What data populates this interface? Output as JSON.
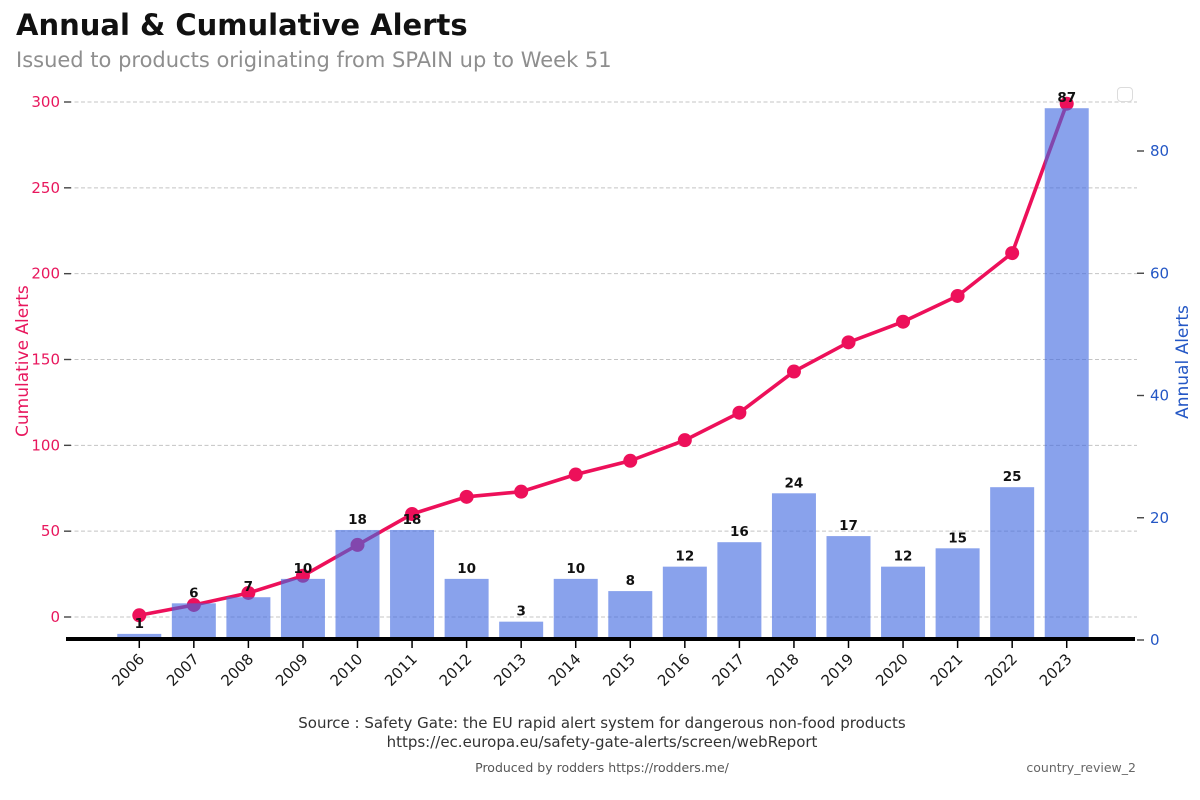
{
  "header": {
    "title": "Annual & Cumulative Alerts",
    "subtitle": "Issued to products originating from SPAIN up to Week 51"
  },
  "chart_data": {
    "type": "bar",
    "title": "Annual & Cumulative Alerts",
    "subtitle": "Issued to products originating from SPAIN up to Week 51",
    "categories": [
      "2006",
      "2007",
      "2008",
      "2009",
      "2010",
      "2011",
      "2012",
      "2013",
      "2014",
      "2015",
      "2016",
      "2017",
      "2018",
      "2019",
      "2020",
      "2021",
      "2022",
      "2023"
    ],
    "series": [
      {
        "name": "Annual Alerts",
        "type": "bar",
        "axis": "right",
        "color": "#4169E1",
        "opacity": 0.62,
        "values": [
          1,
          6,
          7,
          10,
          18,
          18,
          10,
          3,
          10,
          8,
          12,
          16,
          24,
          17,
          12,
          15,
          25,
          87
        ]
      },
      {
        "name": "Cumulative Alerts",
        "type": "line",
        "axis": "left",
        "color": "#ED105A",
        "marker": "circle",
        "values": [
          1,
          7,
          14,
          24,
          42,
          60,
          70,
          73,
          83,
          91,
          103,
          119,
          143,
          160,
          172,
          187,
          212,
          299
        ]
      }
    ],
    "left_axis": {
      "label": "Cumulative Alerts",
      "color": "#e8175d",
      "ticks": [
        0,
        50,
        100,
        150,
        200,
        250,
        300
      ],
      "range": [
        0,
        300
      ]
    },
    "right_axis": {
      "label": "Annual Alerts",
      "color": "#2457c5",
      "ticks": [
        0,
        20,
        40,
        60,
        80
      ],
      "range": [
        0,
        87
      ]
    },
    "grid": "horizontal dashed",
    "legend": "empty box, top-right",
    "bar_labels_shown": true
  },
  "footer": {
    "source_line1": "Source : Safety Gate: the EU rapid alert system for dangerous non-food products",
    "source_line2": "https://ec.europa.eu/safety-gate-alerts/screen/webReport",
    "produced_by": "Produced by rodders https://rodders.me/",
    "doc_ref": "country_review_2"
  }
}
